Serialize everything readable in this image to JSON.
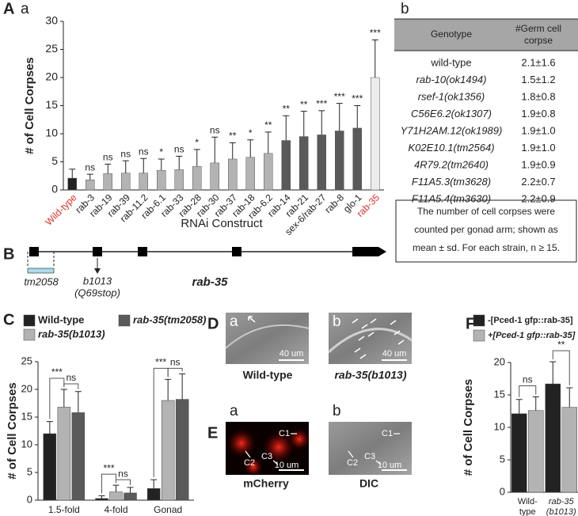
{
  "chart_data": [
    {
      "type": "bar",
      "panel": "A",
      "subpanel": "a",
      "ylabel": "# of Cell Corpses",
      "xlabel": "RNAi Construct",
      "categories": [
        "Wild-type",
        "rab-3",
        "rab-19",
        "rab-39",
        "rab-11.2",
        "rab-6.1",
        "rab-33",
        "rab-28",
        "rab-30",
        "rab-37",
        "rab-18",
        "rab-6.2",
        "rab-14",
        "rab-21",
        "sex-6/rab-27",
        "rab-8",
        "glo-1",
        "rab-35"
      ],
      "values": [
        2.1,
        1.8,
        2.9,
        3.0,
        3.0,
        3.5,
        3.6,
        4.2,
        4.8,
        5.5,
        5.8,
        6.5,
        8.8,
        9.5,
        9.8,
        10.5,
        11.0,
        20.0
      ],
      "errors": [
        1.6,
        1.0,
        1.7,
        2.2,
        2.6,
        2.0,
        2.4,
        3.0,
        4.6,
        2.9,
        3.1,
        3.8,
        4.4,
        4.5,
        4.3,
        4.9,
        4.0,
        6.7
      ],
      "sig_labels": [
        null,
        "ns",
        "ns",
        "ns",
        "ns",
        "*",
        "ns",
        "*",
        "ns",
        "**",
        "*",
        "**",
        "**",
        "**",
        "***",
        "***",
        "***",
        "***"
      ],
      "colors": [
        "#222222",
        "#b3b3b3",
        "#b3b3b3",
        "#b3b3b3",
        "#b3b3b3",
        "#b3b3b3",
        "#b3b3b3",
        "#b3b3b3",
        "#b3b3b3",
        "#b3b3b3",
        "#b3b3b3",
        "#b3b3b3",
        "#5a5a5a",
        "#5a5a5a",
        "#5a5a5a",
        "#5a5a5a",
        "#5a5a5a",
        "#ececec"
      ],
      "category_label_colors": [
        "#d9312b",
        "#222222",
        "#222222",
        "#222222",
        "#222222",
        "#222222",
        "#222222",
        "#222222",
        "#222222",
        "#222222",
        "#222222",
        "#222222",
        "#222222",
        "#222222",
        "#222222",
        "#222222",
        "#222222",
        "#d9312b"
      ],
      "ylim": [
        0,
        30
      ],
      "yticks": [
        0,
        5,
        10,
        15,
        20,
        25,
        30
      ]
    },
    {
      "type": "grouped_bar",
      "panel": "C",
      "ylabel": "# of Cell Corpses",
      "categories": [
        "1.5-fold",
        "4-fold",
        "Gonad"
      ],
      "series": [
        {
          "name": "Wild-type",
          "color": "#222222",
          "values": [
            12.0,
            0.3,
            2.1
          ],
          "errors": [
            2.2,
            0.5,
            1.6
          ]
        },
        {
          "name": "rab-35(b1013)",
          "color": "#b3b3b3",
          "values": [
            16.8,
            1.5,
            18.0
          ],
          "errors": [
            3.2,
            1.2,
            3.8
          ]
        },
        {
          "name": "rab-35(tm2058)",
          "color": "#5a5a5a",
          "values": [
            15.8,
            1.3,
            18.2
          ],
          "errors": [
            3.8,
            1.0,
            4.6
          ]
        }
      ],
      "sig_labels": [
        [
          "***",
          "ns"
        ],
        [
          "***",
          "ns"
        ],
        [
          "***",
          "ns"
        ]
      ],
      "ylim": [
        0,
        25
      ],
      "yticks": [
        0,
        5,
        10,
        15,
        20,
        25
      ]
    },
    {
      "type": "grouped_bar",
      "panel": "F",
      "ylabel": "# of Cell Corpses",
      "categories": [
        [
          "Wild-",
          "type"
        ],
        [
          "rab-35",
          "(b1013)"
        ]
      ],
      "series": [
        {
          "name": "-[Pced-1 gfp::rab-35]",
          "color": "#222222",
          "values": [
            12.1,
            16.7
          ],
          "errors": [
            2.2,
            3.4
          ]
        },
        {
          "name": "+[Pced-1 gfp::rab-35]",
          "color": "#b3b3b3",
          "values": [
            12.6,
            13.1
          ],
          "errors": [
            2.1,
            3.0
          ]
        }
      ],
      "sig_labels": [
        [
          "ns"
        ],
        [
          "**"
        ]
      ],
      "ylim": [
        0,
        20
      ],
      "yticks": [
        0,
        5,
        10,
        15,
        20
      ]
    }
  ],
  "table": {
    "panel": "b",
    "header": {
      "genotype": "Genotype",
      "count": [
        "#Germ cell",
        "corpse"
      ]
    },
    "rows": [
      [
        "wild-type",
        "2.1±1.6"
      ],
      [
        "rab-10(ok1494)",
        "1.5±1.2"
      ],
      [
        "rsef-1(ok1356)",
        "1.8±0.8"
      ],
      [
        "C56E6.2(ok1307)",
        "1.9±0.8"
      ],
      [
        "Y71H2AM.12(ok1989)",
        "1.9±1.0"
      ],
      [
        "K02E10.1(tm2564)",
        "1.9±1.0"
      ],
      [
        "4R79.2(tm2640)",
        "1.9±0.9"
      ],
      [
        "F11A5.3(tm3628)",
        "2.2±0.7"
      ],
      [
        "F11A5.4(tm3630)",
        "2.2±0.9"
      ]
    ],
    "note": [
      "The number of cell corpses were",
      "counted per gonad arm; shown as",
      "mean ± sd.  For each strain, n ≥ 15."
    ]
  },
  "gene_diagram": {
    "panel": "B",
    "deletion": "tm2058",
    "point_mutation": "b1013",
    "effect": "(Q69stop)",
    "gene": "rab-35"
  },
  "micrographs": [
    {
      "panel": "D",
      "images": [
        {
          "letter": "a",
          "scale_bar": "40 um",
          "caption": "Wild-type"
        },
        {
          "letter": "b",
          "scale_bar": "40 um",
          "caption": "rab-35(b1013)"
        }
      ]
    },
    {
      "panel": "E",
      "images": [
        {
          "letter": "a",
          "scale_bar": "10 um",
          "caption": "mCherry",
          "cells": [
            "C1",
            "C2",
            "C3"
          ]
        },
        {
          "letter": "b",
          "scale_bar": "10 um",
          "caption": "DIC",
          "cells": [
            "C1",
            "C2",
            "C3"
          ]
        }
      ]
    }
  ]
}
